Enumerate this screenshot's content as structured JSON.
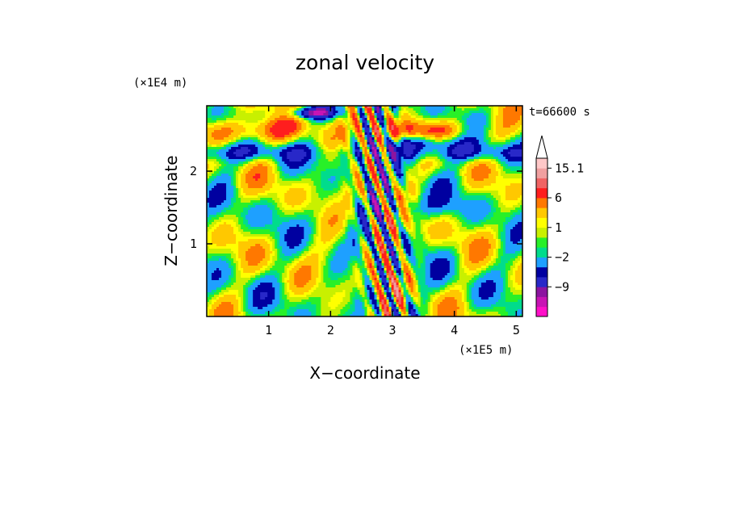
{
  "chart_data": {
    "type": "heatmap",
    "title": "zonal velocity",
    "xlabel": "X−coordinate",
    "ylabel": "Z−coordinate",
    "x_unit": "(×1E5 m)",
    "y_unit": "(×1E4 m)",
    "time_label": "t=66600 s",
    "xlim": [
      0,
      5.1
    ],
    "ylim": [
      0,
      2.9
    ],
    "x_ticks": [
      1,
      2,
      3,
      4,
      5
    ],
    "y_ticks": [
      1,
      2
    ],
    "colorbar": {
      "levels": [
        -14,
        -11,
        -9,
        -6,
        -4,
        -2,
        -1,
        0,
        1,
        2,
        4,
        6,
        9,
        11,
        15.1
      ],
      "colors": [
        "#ff10c8",
        "#c814b4",
        "#8c14a0",
        "#2828c8",
        "#0000a0",
        "#1ea0ff",
        "#00dc8c",
        "#28f028",
        "#c8f000",
        "#ffff00",
        "#ffc800",
        "#ff7800",
        "#ff1e1e",
        "#f06464",
        "#f0a0a0",
        "#ffc8c8"
      ],
      "tick_labels": [
        "15.1",
        "6",
        "1",
        "−2",
        "−9"
      ],
      "extend": "max"
    }
  }
}
